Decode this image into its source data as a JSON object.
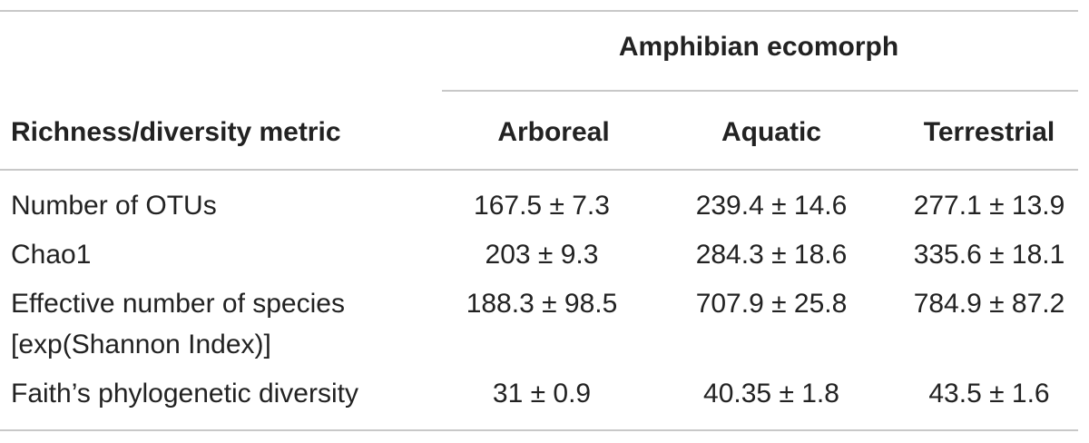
{
  "header": {
    "group": "Amphibian ecomorph",
    "columns": [
      "Richness/diversity metric",
      "Arboreal",
      "Aquatic",
      "Terrestrial"
    ]
  },
  "table": {
    "rows": [
      {
        "metric": [
          "Number of OTUs"
        ],
        "values": [
          "167.5 ± 7.3",
          "239.4 ± 14.6",
          "277.1 ± 13.9"
        ]
      },
      {
        "metric": [
          "Chao1"
        ],
        "values": [
          "203 ± 9.3",
          "284.3 ± 18.6",
          "335.6 ± 18.1"
        ]
      },
      {
        "metric": [
          "Effective number of species",
          "[exp(Shannon Index)]"
        ],
        "values": [
          "188.3 ± 98.5",
          "707.9 ± 25.8",
          "784.9 ± 87.2"
        ]
      },
      {
        "metric": [
          "Faith’s phylogenetic diversity"
        ],
        "values": [
          "31 ± 0.9",
          "40.35 ± 1.8",
          "43.5 ± 1.6"
        ]
      }
    ]
  }
}
